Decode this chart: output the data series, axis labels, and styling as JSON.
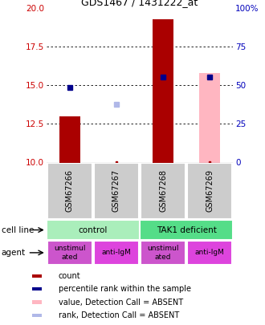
{
  "title": "GDS1467 / 1431222_at",
  "samples": [
    "GSM67266",
    "GSM67267",
    "GSM67268",
    "GSM67269"
  ],
  "ylim": [
    10,
    20
  ],
  "yticks_left": [
    10,
    12.5,
    15,
    17.5,
    20
  ],
  "yticks_right_labels": [
    "0",
    "25",
    "50",
    "75",
    "100%"
  ],
  "left_color": "#cc0000",
  "right_color": "#0000bb",
  "bar_values": [
    13.0,
    null,
    19.3,
    null
  ],
  "bar_color": "#aa0000",
  "absent_bar_values": [
    null,
    null,
    null,
    15.8
  ],
  "absent_bar_color": "#ffb6c1",
  "rank_markers": [
    14.87,
    null,
    15.55,
    15.55
  ],
  "rank_marker_color": "#00008b",
  "rank_absent_markers": [
    null,
    13.75,
    null,
    null
  ],
  "rank_absent_color": "#b0b8e8",
  "small_dot_values": [
    null,
    10.05,
    null,
    10.05
  ],
  "cell_line_labels": [
    "control",
    "TAK1 deficient"
  ],
  "cell_line_spans": [
    [
      0,
      2
    ],
    [
      2,
      4
    ]
  ],
  "cell_line_colors": [
    "#aaeebb",
    "#55dd88"
  ],
  "agent_labels": [
    "unstimul\nated",
    "anti-IgM",
    "unstimul\nated",
    "anti-IgM"
  ],
  "agent_colors": [
    "#cc55cc",
    "#dd44dd",
    "#cc55cc",
    "#dd44dd"
  ],
  "legend_items": [
    {
      "color": "#aa0000",
      "label": "count"
    },
    {
      "color": "#00008b",
      "label": "percentile rank within the sample"
    },
    {
      "color": "#ffb6c1",
      "label": "value, Detection Call = ABSENT"
    },
    {
      "color": "#b0b8e8",
      "label": "rank, Detection Call = ABSENT"
    }
  ],
  "fig_width": 3.3,
  "fig_height": 4.05,
  "dpi": 100
}
